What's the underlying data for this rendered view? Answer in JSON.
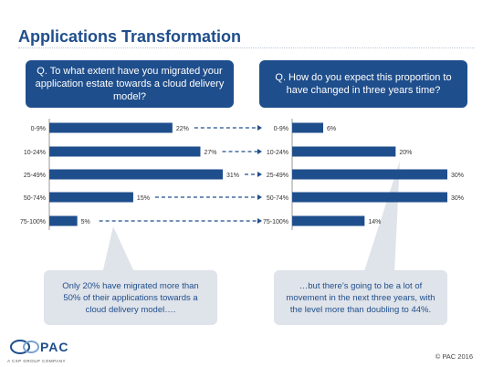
{
  "title": "Applications Transformation",
  "left_question": "Q. To what extent have you migrated your application estate towards a cloud delivery model?",
  "right_question": "Q. How do you expect this proportion to have changed in three years time?",
  "left_callout": "Only 20% have migrated more than 50% of their applications towards a cloud delivery model….",
  "right_callout": "…but there’s going to be a lot of movement in the next three years, with the level more than doubling to 44%.",
  "logo": {
    "text": "PAC",
    "subtitle": "A CXP GROUP COMPANY"
  },
  "copyright": "© PAC 2016",
  "colors": {
    "bar": "#1f4e8c",
    "callout": "#dfe3ea",
    "title": "#1f4e8c"
  },
  "chart_data": [
    {
      "type": "bar",
      "orientation": "horizontal",
      "categories": [
        "0-9%",
        "10-24%",
        "25-49%",
        "50-74%",
        "75-100%"
      ],
      "values": [
        22,
        27,
        31,
        15,
        5
      ],
      "value_labels": [
        "22%",
        "27%",
        "31%",
        "15%",
        "5%"
      ],
      "xlim": [
        0,
        31
      ]
    },
    {
      "type": "bar",
      "orientation": "horizontal",
      "categories": [
        "0-9%",
        "10-24%",
        "25-49%",
        "50-74%",
        "75-100%"
      ],
      "values": [
        6,
        20,
        30,
        30,
        14
      ],
      "value_labels": [
        "6%",
        "20%",
        "30%",
        "30%",
        "14%"
      ],
      "xlim": [
        0,
        30
      ]
    }
  ]
}
